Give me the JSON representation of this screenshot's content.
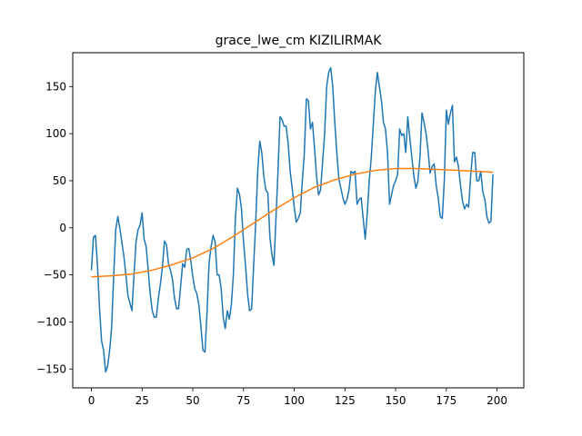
{
  "chart_data": {
    "type": "line",
    "title": "grace_lwe_cm KIZILIRMAK",
    "xlabel": "",
    "ylabel": "",
    "xlim": [
      -9.2,
      213.2
    ],
    "ylim": [
      -170,
      186
    ],
    "xticks": [
      0,
      25,
      50,
      75,
      100,
      125,
      150,
      175,
      200
    ],
    "yticks": [
      -150,
      -100,
      -50,
      0,
      50,
      100,
      150
    ],
    "grid": false,
    "legend": "none",
    "series": [
      {
        "color": "#1f77b4",
        "points": [
          [
            0,
            -45
          ],
          [
            1,
            -10
          ],
          [
            2,
            -8
          ],
          [
            3,
            -40
          ],
          [
            4,
            -85
          ],
          [
            5,
            -120
          ],
          [
            6,
            -130
          ],
          [
            7,
            -153
          ],
          [
            8,
            -147
          ],
          [
            9,
            -130
          ],
          [
            10,
            -105
          ],
          [
            11,
            -50
          ],
          [
            12,
            -2
          ],
          [
            13,
            12
          ],
          [
            14,
            0
          ],
          [
            15,
            -15
          ],
          [
            16,
            -30
          ],
          [
            17,
            -50
          ],
          [
            18,
            -72
          ],
          [
            19,
            -80
          ],
          [
            20,
            -88
          ],
          [
            21,
            -50
          ],
          [
            22,
            -15
          ],
          [
            23,
            -2
          ],
          [
            24,
            3
          ],
          [
            25,
            16
          ],
          [
            26,
            -12
          ],
          [
            27,
            -20
          ],
          [
            28,
            -45
          ],
          [
            29,
            -70
          ],
          [
            30,
            -88
          ],
          [
            31,
            -95
          ],
          [
            32,
            -95
          ],
          [
            33,
            -75
          ],
          [
            34,
            -60
          ],
          [
            35,
            -42
          ],
          [
            36,
            -14
          ],
          [
            37,
            -18
          ],
          [
            38,
            -38
          ],
          [
            39,
            -45
          ],
          [
            40,
            -55
          ],
          [
            41,
            -75
          ],
          [
            42,
            -86
          ],
          [
            43,
            -86
          ],
          [
            44,
            -62
          ],
          [
            45,
            -38
          ],
          [
            46,
            -42
          ],
          [
            47,
            -23
          ],
          [
            48,
            -22
          ],
          [
            49,
            -35
          ],
          [
            50,
            -52
          ],
          [
            51,
            -65
          ],
          [
            52,
            -70
          ],
          [
            53,
            -82
          ],
          [
            54,
            -105
          ],
          [
            55,
            -130
          ],
          [
            56,
            -132
          ],
          [
            57,
            -90
          ],
          [
            58,
            -38
          ],
          [
            59,
            -20
          ],
          [
            60,
            -8
          ],
          [
            61,
            -15
          ],
          [
            62,
            -50
          ],
          [
            63,
            -50
          ],
          [
            64,
            -65
          ],
          [
            65,
            -95
          ],
          [
            66,
            -107
          ],
          [
            67,
            -88
          ],
          [
            68,
            -97
          ],
          [
            69,
            -82
          ],
          [
            70,
            -50
          ],
          [
            71,
            10
          ],
          [
            72,
            42
          ],
          [
            73,
            36
          ],
          [
            74,
            20
          ],
          [
            75,
            -15
          ],
          [
            76,
            -40
          ],
          [
            77,
            -70
          ],
          [
            78,
            -88
          ],
          [
            79,
            -86
          ],
          [
            80,
            -40
          ],
          [
            81,
            5
          ],
          [
            82,
            60
          ],
          [
            83,
            92
          ],
          [
            84,
            80
          ],
          [
            85,
            55
          ],
          [
            86,
            40
          ],
          [
            87,
            37
          ],
          [
            88,
            -10
          ],
          [
            89,
            -28
          ],
          [
            90,
            -40
          ],
          [
            91,
            10
          ],
          [
            92,
            60
          ],
          [
            93,
            118
          ],
          [
            94,
            115
          ],
          [
            95,
            108
          ],
          [
            96,
            108
          ],
          [
            97,
            90
          ],
          [
            98,
            60
          ],
          [
            99,
            42
          ],
          [
            100,
            22
          ],
          [
            101,
            6
          ],
          [
            102,
            10
          ],
          [
            103,
            16
          ],
          [
            104,
            50
          ],
          [
            105,
            80
          ],
          [
            106,
            137
          ],
          [
            107,
            135
          ],
          [
            108,
            105
          ],
          [
            109,
            112
          ],
          [
            110,
            85
          ],
          [
            111,
            55
          ],
          [
            112,
            35
          ],
          [
            113,
            40
          ],
          [
            114,
            70
          ],
          [
            115,
            100
          ],
          [
            116,
            150
          ],
          [
            117,
            165
          ],
          [
            118,
            170
          ],
          [
            119,
            150
          ],
          [
            120,
            112
          ],
          [
            121,
            80
          ],
          [
            122,
            52
          ],
          [
            123,
            42
          ],
          [
            124,
            32
          ],
          [
            125,
            25
          ],
          [
            126,
            30
          ],
          [
            127,
            40
          ],
          [
            128,
            60
          ],
          [
            129,
            58
          ],
          [
            130,
            60
          ],
          [
            131,
            25
          ],
          [
            132,
            30
          ],
          [
            133,
            32
          ],
          [
            134,
            10
          ],
          [
            135,
            -12
          ],
          [
            136,
            15
          ],
          [
            137,
            50
          ],
          [
            138,
            75
          ],
          [
            139,
            110
          ],
          [
            140,
            145
          ],
          [
            141,
            165
          ],
          [
            142,
            150
          ],
          [
            143,
            135
          ],
          [
            144,
            112
          ],
          [
            145,
            105
          ],
          [
            146,
            80
          ],
          [
            147,
            25
          ],
          [
            148,
            35
          ],
          [
            149,
            45
          ],
          [
            150,
            50
          ],
          [
            151,
            57
          ],
          [
            152,
            105
          ],
          [
            153,
            98
          ],
          [
            154,
            100
          ],
          [
            155,
            80
          ],
          [
            156,
            118
          ],
          [
            157,
            95
          ],
          [
            158,
            75
          ],
          [
            159,
            55
          ],
          [
            160,
            42
          ],
          [
            161,
            50
          ],
          [
            162,
            75
          ],
          [
            163,
            122
          ],
          [
            164,
            112
          ],
          [
            165,
            100
          ],
          [
            166,
            82
          ],
          [
            167,
            58
          ],
          [
            168,
            65
          ],
          [
            169,
            68
          ],
          [
            170,
            45
          ],
          [
            171,
            32
          ],
          [
            172,
            12
          ],
          [
            173,
            10
          ],
          [
            174,
            50
          ],
          [
            175,
            125
          ],
          [
            176,
            110
          ],
          [
            177,
            122
          ],
          [
            178,
            130
          ],
          [
            179,
            70
          ],
          [
            180,
            75
          ],
          [
            181,
            65
          ],
          [
            182,
            45
          ],
          [
            183,
            28
          ],
          [
            184,
            20
          ],
          [
            185,
            25
          ],
          [
            186,
            22
          ],
          [
            187,
            55
          ],
          [
            188,
            80
          ],
          [
            189,
            80
          ],
          [
            190,
            50
          ],
          [
            191,
            50
          ],
          [
            192,
            60
          ],
          [
            193,
            38
          ],
          [
            194,
            30
          ],
          [
            195,
            12
          ],
          [
            196,
            5
          ],
          [
            197,
            7
          ],
          [
            198,
            57
          ]
        ]
      },
      {
        "color": "#ff7f0e",
        "points": [
          [
            0,
            -52
          ],
          [
            10,
            -51
          ],
          [
            20,
            -49
          ],
          [
            30,
            -45
          ],
          [
            40,
            -39
          ],
          [
            50,
            -32
          ],
          [
            60,
            -22
          ],
          [
            70,
            -9
          ],
          [
            80,
            5
          ],
          [
            90,
            19
          ],
          [
            100,
            32
          ],
          [
            110,
            43
          ],
          [
            120,
            51
          ],
          [
            130,
            57
          ],
          [
            140,
            61
          ],
          [
            150,
            63
          ],
          [
            160,
            63
          ],
          [
            170,
            62
          ],
          [
            180,
            61
          ],
          [
            190,
            60
          ],
          [
            198,
            59
          ]
        ]
      }
    ]
  }
}
